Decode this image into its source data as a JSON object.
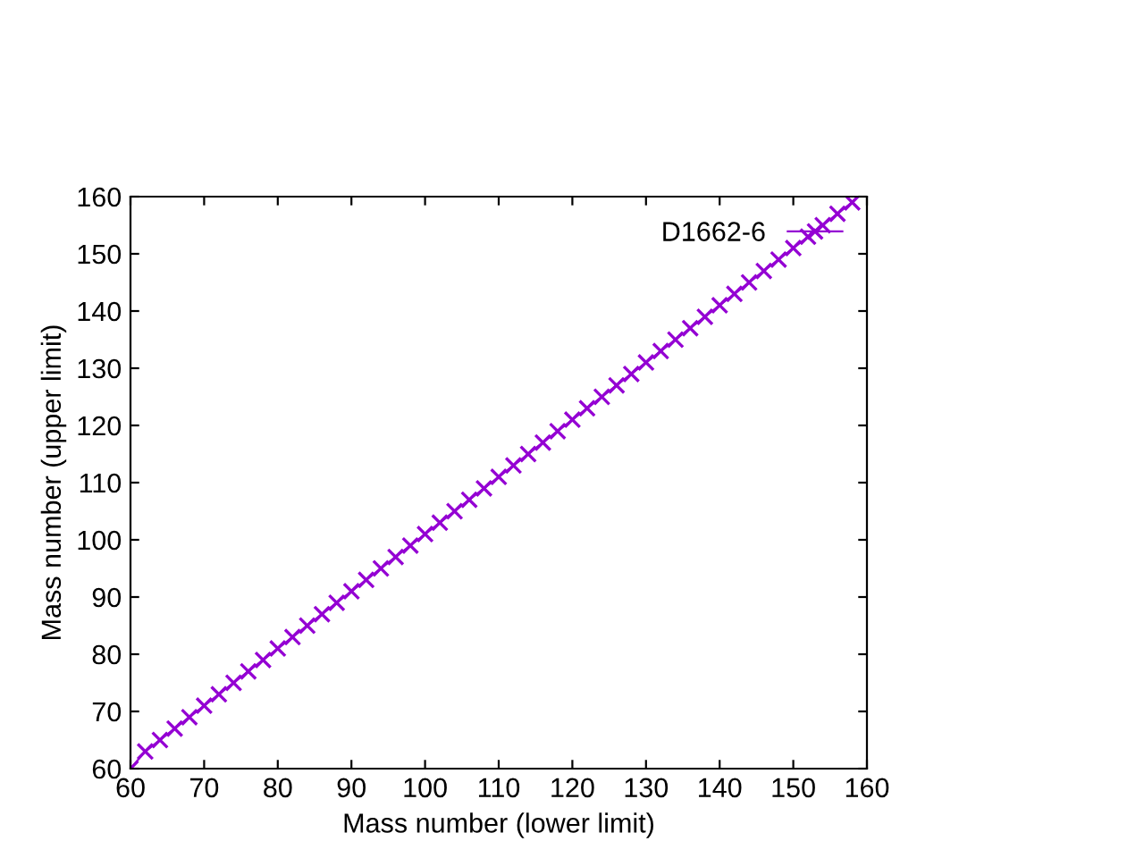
{
  "chart_data": {
    "type": "line",
    "xlabel": "Mass number (lower limit)",
    "ylabel": "Mass number (upper limit)",
    "x": [
      60,
      62,
      64,
      66,
      68,
      70,
      72,
      74,
      76,
      78,
      80,
      82,
      84,
      86,
      88,
      90,
      92,
      94,
      96,
      98,
      100,
      102,
      104,
      106,
      108,
      110,
      112,
      114,
      116,
      118,
      120,
      122,
      124,
      126,
      128,
      130,
      132,
      134,
      136,
      138,
      140,
      142,
      144,
      146,
      148,
      150,
      152,
      154,
      156,
      158
    ],
    "series": [
      {
        "name": "D1662-6",
        "color": "#9400d3",
        "values": [
          60,
          63,
          65,
          67,
          69,
          71,
          73,
          75,
          77,
          79,
          81,
          83,
          85,
          87,
          89,
          91,
          93,
          95,
          97,
          99,
          101,
          103,
          105,
          107,
          109,
          111,
          113,
          115,
          117,
          119,
          121,
          123,
          125,
          127,
          129,
          131,
          133,
          135,
          137,
          139,
          141,
          143,
          145,
          147,
          149,
          151,
          153,
          155,
          157,
          159
        ]
      }
    ],
    "xlim": [
      60,
      160
    ],
    "ylim": [
      60,
      160
    ],
    "xticks": [
      60,
      70,
      80,
      90,
      100,
      110,
      120,
      130,
      140,
      150,
      160
    ],
    "yticks": [
      60,
      70,
      80,
      90,
      100,
      110,
      120,
      130,
      140,
      150,
      160
    ],
    "marker": "cross",
    "line_style": "solid",
    "legend": "top right",
    "grid": false
  }
}
